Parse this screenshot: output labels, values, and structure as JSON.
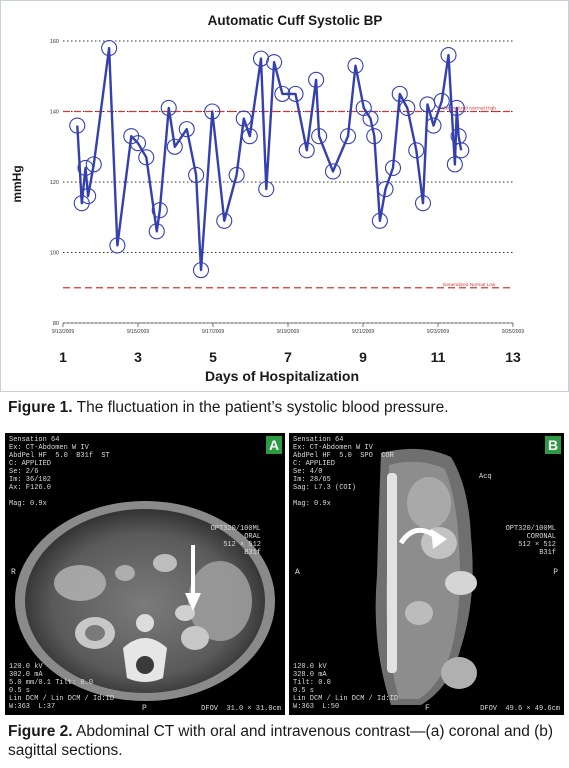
{
  "figure1": {
    "caption_label": "Figure 1.",
    "caption_text": " The fluctuation in the patient’s systolic blood pressure."
  },
  "figure2": {
    "caption_label": "Figure 2.",
    "caption_text": " Abdominal CT with oral and intravenous contrast—(a) coronal and (b) sagittal sections.",
    "panel_a": {
      "badge": "A",
      "header": [
        "Sensation 64",
        "Ex: CT-Abdomen W IV",
        "AbdPel HF  5.0  B31f  ST",
        "C: APPLIED",
        "Se: 2/6",
        "Im: 36/102",
        "Ax: F126.0",
        "",
        "Mag: 0.9x"
      ],
      "right": [
        "OPT320/100ML",
        "ORAL",
        "512 × 512",
        "B31f"
      ],
      "footer": [
        "120.0 kV",
        "302.0 mA",
        "5.0 mm/0.1 Tilt: 0.0",
        "0.5 s",
        "Lin DCM / Lin DCM / Id:ID",
        "W:363  L:37"
      ],
      "footer_right": "DFOV  31.0 × 31.0cm",
      "edge_labels": {
        "left": "R",
        "bottom": "P"
      }
    },
    "panel_b": {
      "badge": "B",
      "header": [
        "Sensation 64",
        "Ex: CT-Abdomen W IV",
        "AbdPel HF  5.0  SPO  COR",
        "C: APPLIED",
        "Se: 4/0",
        "Im: 28/65",
        "Sag: L7.3 (COI)",
        "",
        "Mag: 0.9x"
      ],
      "right": [
        "OPT320/100ML",
        "CORONAL",
        "512 × 512",
        "B31f"
      ],
      "footer": [
        "120.0 kV",
        "328.0 mA",
        "Tilt: 0.0",
        "0.5 s",
        "Lin DCM / Lin DCM / Id:ID",
        "W:363  L:50"
      ],
      "footer_right": "DFOV  49.6 × 49.6cm",
      "edge_labels": {
        "left": "A",
        "right": "P",
        "bottom": "F",
        "top": "Acq"
      }
    }
  },
  "chart_data": {
    "type": "line",
    "title": "Automatic Cuff Systolic BP",
    "ylabel": "mmHg",
    "xlabel": "Days of Hospitalization",
    "ylim": [
      80,
      160
    ],
    "yticks": [
      80,
      100,
      120,
      140,
      160
    ],
    "xlim": [
      1,
      13
    ],
    "date_ticks": [
      {
        "day": 1,
        "label": "9/13/2009"
      },
      {
        "day": 3,
        "label": "9/15/2009"
      },
      {
        "day": 5,
        "label": "9/17/2009"
      },
      {
        "day": 7,
        "label": "9/19/2009"
      },
      {
        "day": 9,
        "label": "9/21/2009"
      },
      {
        "day": 11,
        "label": "9/23/2009"
      },
      {
        "day": 13,
        "label": "9/25/2009"
      }
    ],
    "day_ticks": [
      1,
      3,
      5,
      7,
      9,
      11,
      13
    ],
    "reference_lines": [
      {
        "label": "Generalized Normal High",
        "value": 140,
        "color": "#d9352f"
      },
      {
        "label": "Generalized Normal Low",
        "value": 90,
        "color": "#d9352f"
      }
    ],
    "grid": "dotted horizontal",
    "series": [
      {
        "color": "#3440b0",
        "points": [
          [
            1.38,
            136
          ],
          [
            1.5,
            114
          ],
          [
            1.6,
            124
          ],
          [
            1.67,
            116
          ],
          [
            1.82,
            125
          ],
          [
            2.23,
            158
          ],
          [
            2.45,
            102
          ],
          [
            2.82,
            133
          ],
          [
            3.0,
            131
          ],
          [
            3.22,
            127
          ],
          [
            3.5,
            106
          ],
          [
            3.58,
            112
          ],
          [
            3.82,
            141
          ],
          [
            3.98,
            130
          ],
          [
            4.3,
            135
          ],
          [
            4.55,
            122
          ],
          [
            4.68,
            95
          ],
          [
            4.98,
            140
          ],
          [
            5.3,
            109
          ],
          [
            5.63,
            122
          ],
          [
            5.82,
            138
          ],
          [
            5.98,
            133
          ],
          [
            6.28,
            155
          ],
          [
            6.42,
            118
          ],
          [
            6.63,
            154
          ],
          [
            6.85,
            145
          ],
          [
            7.2,
            145
          ],
          [
            7.5,
            129
          ],
          [
            7.75,
            149
          ],
          [
            7.83,
            133
          ],
          [
            8.2,
            123
          ],
          [
            8.6,
            133
          ],
          [
            8.8,
            153
          ],
          [
            9.02,
            141
          ],
          [
            9.2,
            138
          ],
          [
            9.3,
            133
          ],
          [
            9.45,
            109
          ],
          [
            9.6,
            118
          ],
          [
            9.8,
            124
          ],
          [
            9.98,
            145
          ],
          [
            10.18,
            141
          ],
          [
            10.42,
            129
          ],
          [
            10.6,
            114
          ],
          [
            10.72,
            142
          ],
          [
            10.88,
            136
          ],
          [
            11.1,
            143
          ],
          [
            11.28,
            156
          ],
          [
            11.45,
            125
          ],
          [
            11.5,
            141
          ],
          [
            11.55,
            133
          ],
          [
            11.62,
            129
          ]
        ]
      }
    ]
  }
}
